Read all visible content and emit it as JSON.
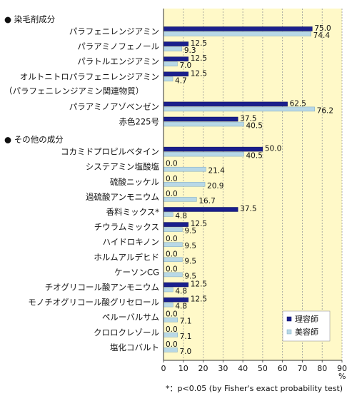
{
  "chart_data": {
    "type": "bar",
    "orientation": "horizontal",
    "sections": [
      {
        "label": "● 染毛剤成分",
        "before_category": 0
      },
      {
        "label": "● その他の成分",
        "before_category": 6
      }
    ],
    "categories": [
      "パラフェニレンジアミン",
      "パラアミノフェノール",
      "パラトルエンジアミン",
      "オルトニトロパラフェニレンジアミン",
      "パラアミノアゾベンゼン",
      "赤色225号",
      "コカミドプロピルベタイン",
      "システアミン塩酸塩",
      "硫酸ニッケル",
      "過硫酸アンモニウム",
      "香料ミックス*",
      "チウラムミックス",
      "ハイドロキノン",
      "ホルムアルデヒド",
      "ケーソンCG",
      "チオグリコール酸アンモニウム",
      "モノチオグリコール酸グリセロール",
      "ペルーバルサム",
      "クロロクレゾール",
      "塩化コバルト"
    ],
    "category_notes": {
      "3": "（パラフェニレンジアミン関連物質）"
    },
    "series": [
      {
        "name": "理容師",
        "color": "#1a1f8c",
        "values": [
          75.0,
          12.5,
          12.5,
          12.5,
          62.5,
          37.5,
          50.0,
          0.0,
          0.0,
          0.0,
          37.5,
          12.5,
          0.0,
          0.0,
          0.0,
          12.5,
          12.5,
          0.0,
          0.0,
          0.0
        ]
      },
      {
        "name": "美容師",
        "color": "#b8d8e6",
        "values": [
          74.4,
          9.3,
          7.0,
          4.7,
          76.2,
          40.5,
          40.5,
          21.4,
          20.9,
          16.7,
          4.8,
          9.5,
          9.5,
          9.5,
          9.5,
          4.8,
          4.8,
          7.1,
          7.1,
          7.0
        ]
      }
    ],
    "xlim": [
      0,
      90
    ],
    "xticks": [
      0,
      10,
      20,
      30,
      40,
      50,
      60,
      70,
      80,
      90
    ],
    "xunit": "%",
    "grid": "vertical dashed",
    "plot_background": "#fff9c8",
    "legend_position": "bottom-right",
    "footnote": "*：p<0.05 (by Fisher's exact probability test)"
  }
}
